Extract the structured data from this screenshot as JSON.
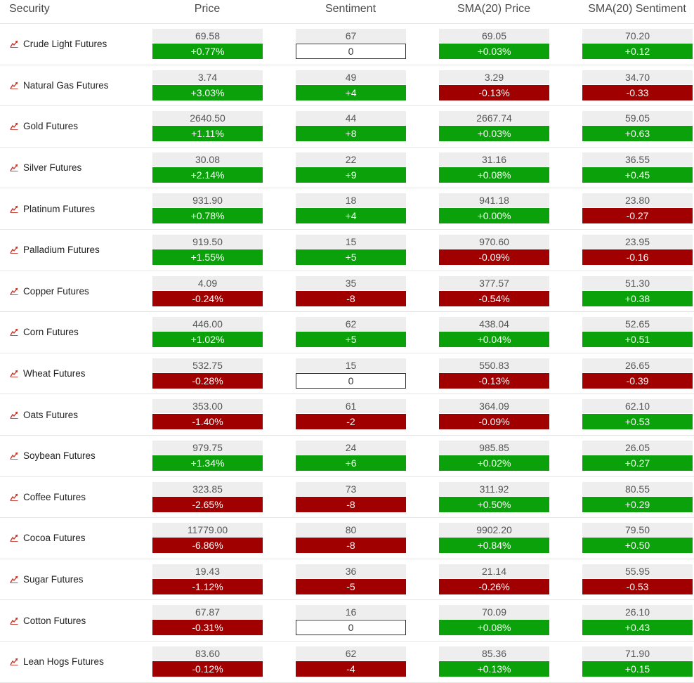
{
  "headers": {
    "security": "Security",
    "price": "Price",
    "sentiment": "Sentiment",
    "sma_price": "SMA(20) Price",
    "sma_sentiment": "SMA(20) Sentiment"
  },
  "colors": {
    "positive": "#0aa10a",
    "negative": "#a00000",
    "neutral": "#ffffff"
  },
  "rows": [
    {
      "name": "Crude Light Futures",
      "price": "69.58",
      "price_chg": "+0.77%",
      "sent": "67",
      "sent_chg": "0",
      "sma_price": "69.05",
      "sma_price_chg": "+0.03%",
      "sma_sent": "70.20",
      "sma_sent_chg": "+0.12"
    },
    {
      "name": "Natural Gas Futures",
      "price": "3.74",
      "price_chg": "+3.03%",
      "sent": "49",
      "sent_chg": "+4",
      "sma_price": "3.29",
      "sma_price_chg": "-0.13%",
      "sma_sent": "34.70",
      "sma_sent_chg": "-0.33"
    },
    {
      "name": "Gold Futures",
      "price": "2640.50",
      "price_chg": "+1.11%",
      "sent": "44",
      "sent_chg": "+8",
      "sma_price": "2667.74",
      "sma_price_chg": "+0.03%",
      "sma_sent": "59.05",
      "sma_sent_chg": "+0.63"
    },
    {
      "name": "Silver Futures",
      "price": "30.08",
      "price_chg": "+2.14%",
      "sent": "22",
      "sent_chg": "+9",
      "sma_price": "31.16",
      "sma_price_chg": "+0.08%",
      "sma_sent": "36.55",
      "sma_sent_chg": "+0.45"
    },
    {
      "name": "Platinum Futures",
      "price": "931.90",
      "price_chg": "+0.78%",
      "sent": "18",
      "sent_chg": "+4",
      "sma_price": "941.18",
      "sma_price_chg": "+0.00%",
      "sma_sent": "23.80",
      "sma_sent_chg": "-0.27"
    },
    {
      "name": "Palladium Futures",
      "price": "919.50",
      "price_chg": "+1.55%",
      "sent": "15",
      "sent_chg": "+5",
      "sma_price": "970.60",
      "sma_price_chg": "-0.09%",
      "sma_sent": "23.95",
      "sma_sent_chg": "-0.16"
    },
    {
      "name": "Copper Futures",
      "price": "4.09",
      "price_chg": "-0.24%",
      "sent": "35",
      "sent_chg": "-8",
      "sma_price": "377.57",
      "sma_price_chg": "-0.54%",
      "sma_sent": "51.30",
      "sma_sent_chg": "+0.38"
    },
    {
      "name": "Corn Futures",
      "price": "446.00",
      "price_chg": "+1.02%",
      "sent": "62",
      "sent_chg": "+5",
      "sma_price": "438.04",
      "sma_price_chg": "+0.04%",
      "sma_sent": "52.65",
      "sma_sent_chg": "+0.51"
    },
    {
      "name": "Wheat Futures",
      "price": "532.75",
      "price_chg": "-0.28%",
      "sent": "15",
      "sent_chg": "0",
      "sma_price": "550.83",
      "sma_price_chg": "-0.13%",
      "sma_sent": "26.65",
      "sma_sent_chg": "-0.39"
    },
    {
      "name": "Oats Futures",
      "price": "353.00",
      "price_chg": "-1.40%",
      "sent": "61",
      "sent_chg": "-2",
      "sma_price": "364.09",
      "sma_price_chg": "-0.09%",
      "sma_sent": "62.10",
      "sma_sent_chg": "+0.53"
    },
    {
      "name": "Soybean Futures",
      "price": "979.75",
      "price_chg": "+1.34%",
      "sent": "24",
      "sent_chg": "+6",
      "sma_price": "985.85",
      "sma_price_chg": "+0.02%",
      "sma_sent": "26.05",
      "sma_sent_chg": "+0.27"
    },
    {
      "name": "Coffee Futures",
      "price": "323.85",
      "price_chg": "-2.65%",
      "sent": "73",
      "sent_chg": "-8",
      "sma_price": "311.92",
      "sma_price_chg": "+0.50%",
      "sma_sent": "80.55",
      "sma_sent_chg": "+0.29"
    },
    {
      "name": "Cocoa Futures",
      "price": "11779.00",
      "price_chg": "-6.86%",
      "sent": "80",
      "sent_chg": "-8",
      "sma_price": "9902.20",
      "sma_price_chg": "+0.84%",
      "sma_sent": "79.50",
      "sma_sent_chg": "+0.50"
    },
    {
      "name": "Sugar Futures",
      "price": "19.43",
      "price_chg": "-1.12%",
      "sent": "36",
      "sent_chg": "-5",
      "sma_price": "21.14",
      "sma_price_chg": "-0.26%",
      "sma_sent": "55.95",
      "sma_sent_chg": "-0.53"
    },
    {
      "name": "Cotton Futures",
      "price": "67.87",
      "price_chg": "-0.31%",
      "sent": "16",
      "sent_chg": "0",
      "sma_price": "70.09",
      "sma_price_chg": "+0.08%",
      "sma_sent": "26.10",
      "sma_sent_chg": "+0.43"
    },
    {
      "name": "Lean Hogs Futures",
      "price": "83.60",
      "price_chg": "-0.12%",
      "sent": "62",
      "sent_chg": "-4",
      "sma_price": "85.36",
      "sma_price_chg": "+0.13%",
      "sma_sent": "71.90",
      "sma_sent_chg": "+0.15"
    }
  ]
}
